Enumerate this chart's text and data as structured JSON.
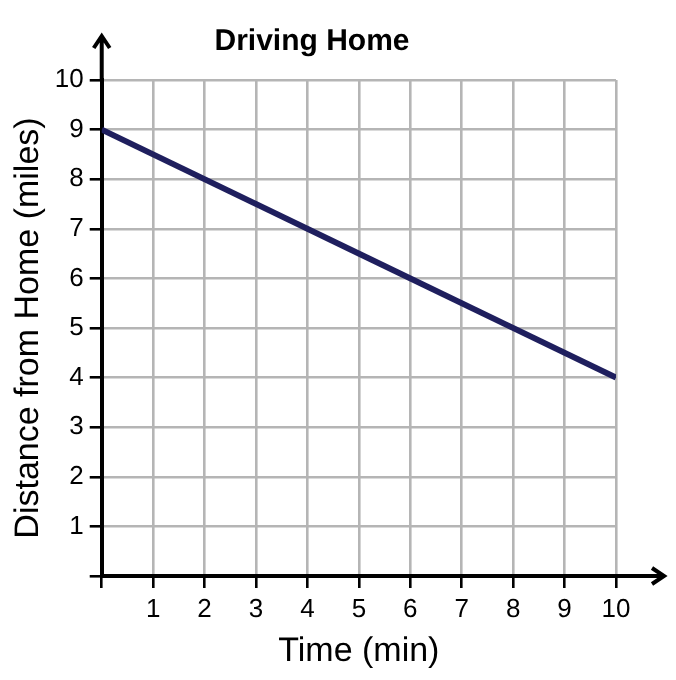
{
  "chart_data": {
    "type": "line",
    "title": "Driving Home",
    "xlabel": "Time (min)",
    "ylabel": "Distance from Home (miles)",
    "x": [
      0,
      10
    ],
    "series": [
      {
        "color": "#1f1f5e",
        "values": [
          9,
          4
        ]
      }
    ],
    "xlim": [
      0,
      10
    ],
    "ylim": [
      0,
      10
    ],
    "xticks": [
      {
        "value": 0,
        "label": null
      },
      1,
      2,
      3,
      4,
      5,
      6,
      7,
      8,
      9,
      10
    ],
    "yticks": [
      {
        "value": 0,
        "label": null
      },
      1,
      2,
      3,
      4,
      5,
      6,
      7,
      8,
      9,
      10
    ],
    "grid": true,
    "legend": false,
    "marker": "none",
    "line_style": "solid"
  }
}
